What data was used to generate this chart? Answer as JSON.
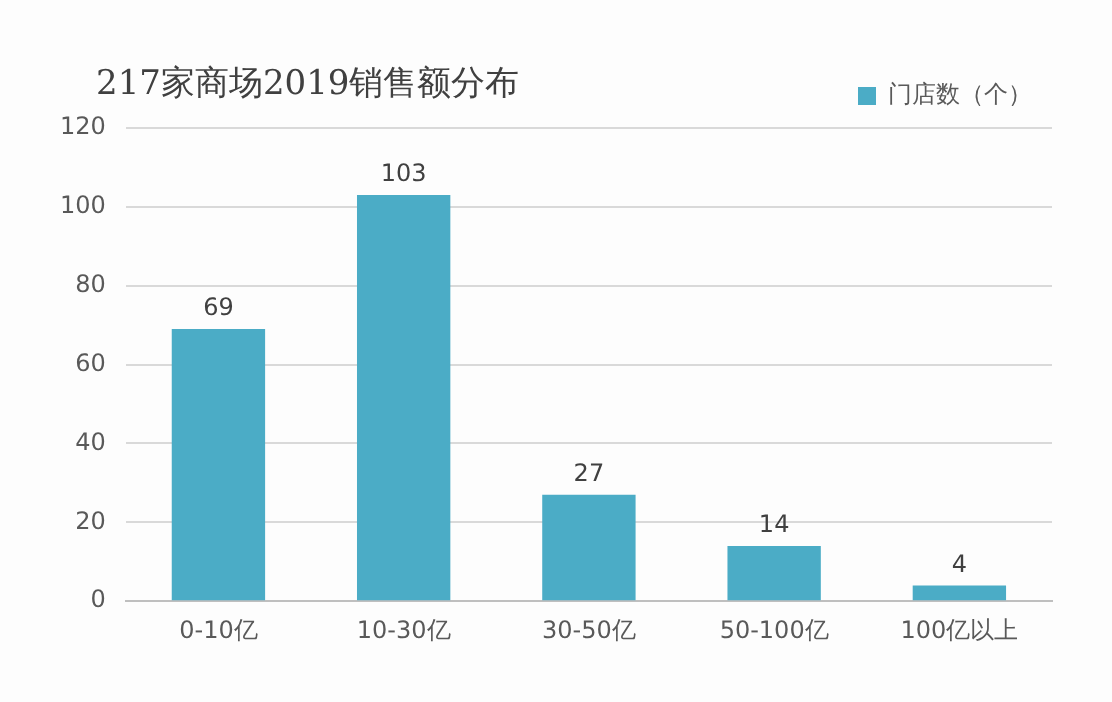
{
  "chart_data": {
    "type": "bar",
    "title": "217家商场2019销售额分布",
    "categories": [
      "0-10亿",
      "10-30亿",
      "30-50亿",
      "50-100亿",
      "100亿以上"
    ],
    "series": [
      {
        "name": "门店数（个）",
        "color": "#4bacc6",
        "values": [
          69,
          103,
          27,
          14,
          4
        ]
      }
    ],
    "ylim": [
      0,
      120
    ],
    "yticks": [
      0,
      20,
      40,
      60,
      80,
      100,
      120
    ],
    "grid": "y",
    "legend": "top right",
    "data_labels": true
  }
}
